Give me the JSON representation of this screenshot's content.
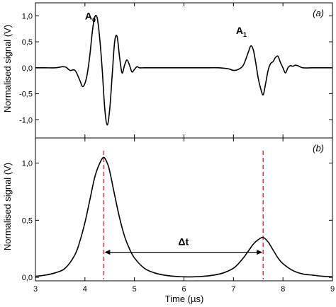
{
  "chart_data": [
    {
      "id": "a",
      "type": "line",
      "panel_label": "(a)",
      "xlim": [
        3,
        9
      ],
      "ylim": [
        -1.35,
        1.25
      ],
      "yticks": [
        "1,0",
        "0,5",
        "0,0",
        "-0,5",
        "-1,0"
      ],
      "ytick_values": [
        1.0,
        0.5,
        0.0,
        -0.5,
        -1.0
      ],
      "ylabel": "Normalised signal (V)",
      "xlabel": "",
      "annotations": [
        {
          "text": "A",
          "sub": "0",
          "x": 4.0,
          "y": 0.93
        },
        {
          "text": "A",
          "sub": "1",
          "x": 7.05,
          "y": 0.65
        }
      ],
      "series": [
        {
          "x": [
            3.0,
            3.2,
            3.4,
            3.55,
            3.62,
            3.7,
            3.8,
            3.9,
            3.95,
            4.0,
            4.05,
            4.1,
            4.15,
            4.2,
            4.25,
            4.3,
            4.35,
            4.4,
            4.45,
            4.5,
            4.55,
            4.6,
            4.65,
            4.7,
            4.75,
            4.8,
            4.85,
            4.9,
            4.95,
            5.0,
            5.05,
            5.1,
            5.2,
            5.3,
            5.5,
            6.0,
            6.5,
            6.7,
            6.9,
            7.0,
            7.1,
            7.2,
            7.3,
            7.35,
            7.4,
            7.45,
            7.5,
            7.55,
            7.6,
            7.65,
            7.7,
            7.75,
            7.8,
            7.85,
            7.9,
            7.95,
            8.0,
            8.05,
            8.1,
            8.15,
            8.2,
            8.25,
            8.3,
            8.4,
            8.6,
            8.8,
            9.0
          ],
          "y": [
            0.0,
            0.0,
            0.0,
            0.02,
            0.01,
            -0.05,
            -0.05,
            -0.25,
            -0.36,
            -0.3,
            -0.1,
            0.25,
            0.7,
            0.98,
            0.95,
            0.55,
            -0.05,
            -0.78,
            -1.1,
            -0.8,
            -0.15,
            0.5,
            0.6,
            0.2,
            -0.1,
            0.05,
            0.15,
            0.05,
            -0.08,
            -0.03,
            0.02,
            0.0,
            0.0,
            0.0,
            0.0,
            0.0,
            0.0,
            0.0,
            -0.02,
            -0.05,
            -0.03,
            0.05,
            0.3,
            0.42,
            0.35,
            0.1,
            -0.2,
            -0.4,
            -0.52,
            -0.3,
            -0.05,
            0.08,
            0.12,
            0.2,
            0.22,
            0.1,
            0.0,
            -0.1,
            0.0,
            0.04,
            0.03,
            0.05,
            0.04,
            0.0,
            0.0,
            0.0,
            0.0
          ]
        }
      ]
    },
    {
      "id": "b",
      "type": "line",
      "panel_label": "(b)",
      "xlim": [
        3,
        9
      ],
      "ylim": [
        -0.03,
        1.22
      ],
      "yticks": [
        "1,0",
        "0,5",
        "0,0"
      ],
      "ytick_values": [
        1.0,
        0.5,
        0.0
      ],
      "xticks": [
        "3",
        "4",
        "5",
        "6",
        "7",
        "8",
        "9"
      ],
      "xtick_values": [
        3,
        4,
        5,
        6,
        7,
        8,
        9
      ],
      "ylabel": "Normalised signal (V)",
      "xlabel": "Time (µs)",
      "vlines": [
        4.38,
        7.6
      ],
      "vline_color": "#e8323c",
      "delta_label": "Δt",
      "delta_y": 0.22,
      "series": [
        {
          "x": [
            3.0,
            3.2,
            3.4,
            3.6,
            3.8,
            3.9,
            4.0,
            4.1,
            4.2,
            4.3,
            4.38,
            4.45,
            4.5,
            4.6,
            4.7,
            4.8,
            4.9,
            5.0,
            5.2,
            5.4,
            5.6,
            5.8,
            6.0,
            6.2,
            6.4,
            6.6,
            6.8,
            7.0,
            7.1,
            7.2,
            7.3,
            7.4,
            7.5,
            7.6,
            7.7,
            7.8,
            7.9,
            8.0,
            8.2,
            8.4,
            8.6,
            8.8,
            9.0
          ],
          "y": [
            0.01,
            0.02,
            0.04,
            0.08,
            0.2,
            0.32,
            0.48,
            0.68,
            0.88,
            1.0,
            1.05,
            1.0,
            0.93,
            0.72,
            0.52,
            0.36,
            0.25,
            0.17,
            0.08,
            0.04,
            0.02,
            0.01,
            0.005,
            0.005,
            0.01,
            0.02,
            0.04,
            0.08,
            0.12,
            0.17,
            0.23,
            0.29,
            0.33,
            0.35,
            0.31,
            0.24,
            0.17,
            0.12,
            0.06,
            0.03,
            0.02,
            0.01,
            0.005
          ]
        }
      ]
    }
  ]
}
